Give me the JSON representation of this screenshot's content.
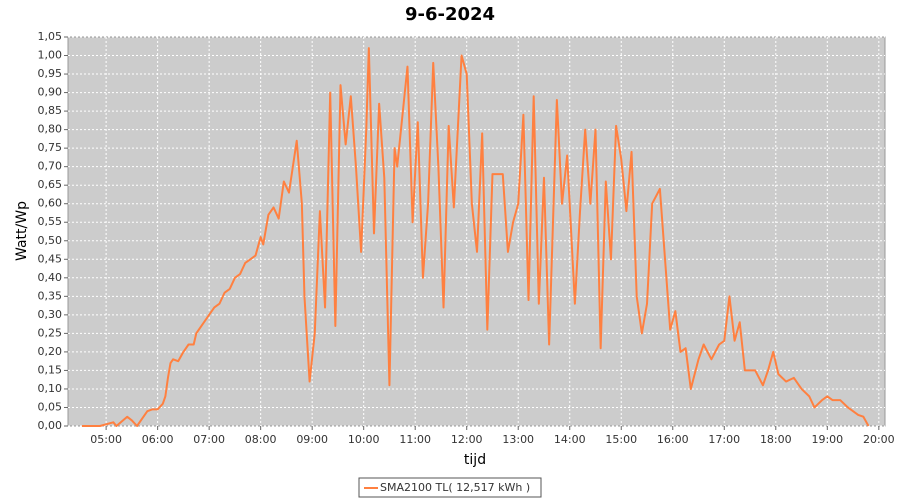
{
  "chart_data": {
    "type": "line",
    "title": "9-6-2024",
    "x_label": "tijd",
    "y_label": "Watt/Wp",
    "xlim": [
      4.26,
      20.12
    ],
    "ylim": [
      0,
      1.05
    ],
    "xticks": [
      {
        "value": 5,
        "label": "05:00"
      },
      {
        "value": 6,
        "label": "06:00"
      },
      {
        "value": 7,
        "label": "07:00"
      },
      {
        "value": 8,
        "label": "08:00"
      },
      {
        "value": 9,
        "label": "09:00"
      },
      {
        "value": 10,
        "label": "10:00"
      },
      {
        "value": 11,
        "label": "11:00"
      },
      {
        "value": 12,
        "label": "12:00"
      },
      {
        "value": 13,
        "label": "13:00"
      },
      {
        "value": 14,
        "label": "14:00"
      },
      {
        "value": 15,
        "label": "15:00"
      },
      {
        "value": 16,
        "label": "16:00"
      },
      {
        "value": 17,
        "label": "17:00"
      },
      {
        "value": 18,
        "label": "18:00"
      },
      {
        "value": 19,
        "label": "19:00"
      },
      {
        "value": 20,
        "label": "20:00"
      }
    ],
    "yticks": [
      {
        "value": 0,
        "label": "0,00"
      },
      {
        "value": 0.05,
        "label": "0,05"
      },
      {
        "value": 0.1,
        "label": "0,10"
      },
      {
        "value": 0.15,
        "label": "0,15"
      },
      {
        "value": 0.2,
        "label": "0,20"
      },
      {
        "value": 0.25,
        "label": "0,25"
      },
      {
        "value": 0.3,
        "label": "0,30"
      },
      {
        "value": 0.35,
        "label": "0,35"
      },
      {
        "value": 0.4,
        "label": "0,40"
      },
      {
        "value": 0.45,
        "label": "0,45"
      },
      {
        "value": 0.5,
        "label": "0,50"
      },
      {
        "value": 0.55,
        "label": "0,55"
      },
      {
        "value": 0.6,
        "label": "0,60"
      },
      {
        "value": 0.65,
        "label": "0,65"
      },
      {
        "value": 0.7,
        "label": "0,70"
      },
      {
        "value": 0.75,
        "label": "0,75"
      },
      {
        "value": 0.8,
        "label": "0,80"
      },
      {
        "value": 0.85,
        "label": "0,85"
      },
      {
        "value": 0.9,
        "label": "0,90"
      },
      {
        "value": 0.95,
        "label": "0,95"
      },
      {
        "value": 1,
        "label": "1,00"
      },
      {
        "value": 1.05,
        "label": "1,05"
      }
    ],
    "grid": true,
    "legend": "bottom",
    "x": [
      4.53,
      4.88,
      5.14,
      5.2,
      5.41,
      5.5,
      5.6,
      5.7,
      5.8,
      5.9,
      6.0,
      6.1,
      6.15,
      6.2,
      6.25,
      6.3,
      6.4,
      6.5,
      6.6,
      6.7,
      6.75,
      6.85,
      7.0,
      7.1,
      7.2,
      7.3,
      7.4,
      7.5,
      7.6,
      7.7,
      7.8,
      7.9,
      8.0,
      8.05,
      8.15,
      8.25,
      8.35,
      8.45,
      8.55,
      8.7,
      8.8,
      8.85,
      8.95,
      9.05,
      9.15,
      9.25,
      9.35,
      9.45,
      9.55,
      9.65,
      9.75,
      9.85,
      9.95,
      10.05,
      10.1,
      10.2,
      10.3,
      10.4,
      10.5,
      10.6,
      10.65,
      10.85,
      10.95,
      11.05,
      11.15,
      11.25,
      11.35,
      11.45,
      11.55,
      11.65,
      11.75,
      11.9,
      12.0,
      12.1,
      12.2,
      12.3,
      12.4,
      12.5,
      12.7,
      12.8,
      12.9,
      13.0,
      13.1,
      13.2,
      13.3,
      13.4,
      13.5,
      13.6,
      13.75,
      13.85,
      13.95,
      14.1,
      14.2,
      14.3,
      14.4,
      14.5,
      14.6,
      14.7,
      14.8,
      14.9,
      15.0,
      15.1,
      15.2,
      15.3,
      15.4,
      15.5,
      15.6,
      15.75,
      15.85,
      15.95,
      16.05,
      16.15,
      16.25,
      16.35,
      16.5,
      16.6,
      16.75,
      16.9,
      17.0,
      17.1,
      17.2,
      17.3,
      17.4,
      17.6,
      17.75,
      17.85,
      17.95,
      18.05,
      18.2,
      18.35,
      18.5,
      18.65,
      18.75,
      18.9,
      19.0,
      19.1,
      19.25,
      19.4,
      19.5,
      19.6,
      19.7,
      19.8
    ],
    "series": [
      {
        "name": "SMA2100 TL( 12,517 kWh )",
        "color": "#ff8040",
        "values": [
          0,
          0,
          0.01,
          0,
          0.025,
          0.015,
          0,
          0.02,
          0.04,
          0.045,
          0.045,
          0.06,
          0.08,
          0.13,
          0.17,
          0.18,
          0.175,
          0.2,
          0.22,
          0.22,
          0.25,
          0.27,
          0.3,
          0.32,
          0.33,
          0.36,
          0.37,
          0.4,
          0.41,
          0.44,
          0.45,
          0.46,
          0.51,
          0.49,
          0.57,
          0.59,
          0.56,
          0.66,
          0.63,
          0.77,
          0.6,
          0.35,
          0.12,
          0.25,
          0.58,
          0.32,
          0.9,
          0.27,
          0.92,
          0.76,
          0.89,
          0.7,
          0.47,
          0.8,
          1.02,
          0.52,
          0.87,
          0.67,
          0.11,
          0.75,
          0.7,
          0.97,
          0.55,
          0.82,
          0.4,
          0.6,
          0.98,
          0.7,
          0.32,
          0.81,
          0.59,
          1.0,
          0.95,
          0.6,
          0.47,
          0.79,
          0.26,
          0.68,
          0.68,
          0.47,
          0.55,
          0.6,
          0.84,
          0.34,
          0.89,
          0.33,
          0.67,
          0.22,
          0.88,
          0.6,
          0.73,
          0.33,
          0.58,
          0.8,
          0.6,
          0.8,
          0.21,
          0.66,
          0.45,
          0.81,
          0.72,
          0.58,
          0.74,
          0.35,
          0.25,
          0.33,
          0.6,
          0.64,
          0.45,
          0.26,
          0.31,
          0.2,
          0.21,
          0.1,
          0.18,
          0.22,
          0.18,
          0.22,
          0.23,
          0.35,
          0.23,
          0.28,
          0.15,
          0.15,
          0.11,
          0.15,
          0.2,
          0.14,
          0.12,
          0.13,
          0.1,
          0.08,
          0.05,
          0.07,
          0.08,
          0.07,
          0.07,
          0.05,
          0.04,
          0.03,
          0.025,
          0
        ]
      }
    ]
  }
}
